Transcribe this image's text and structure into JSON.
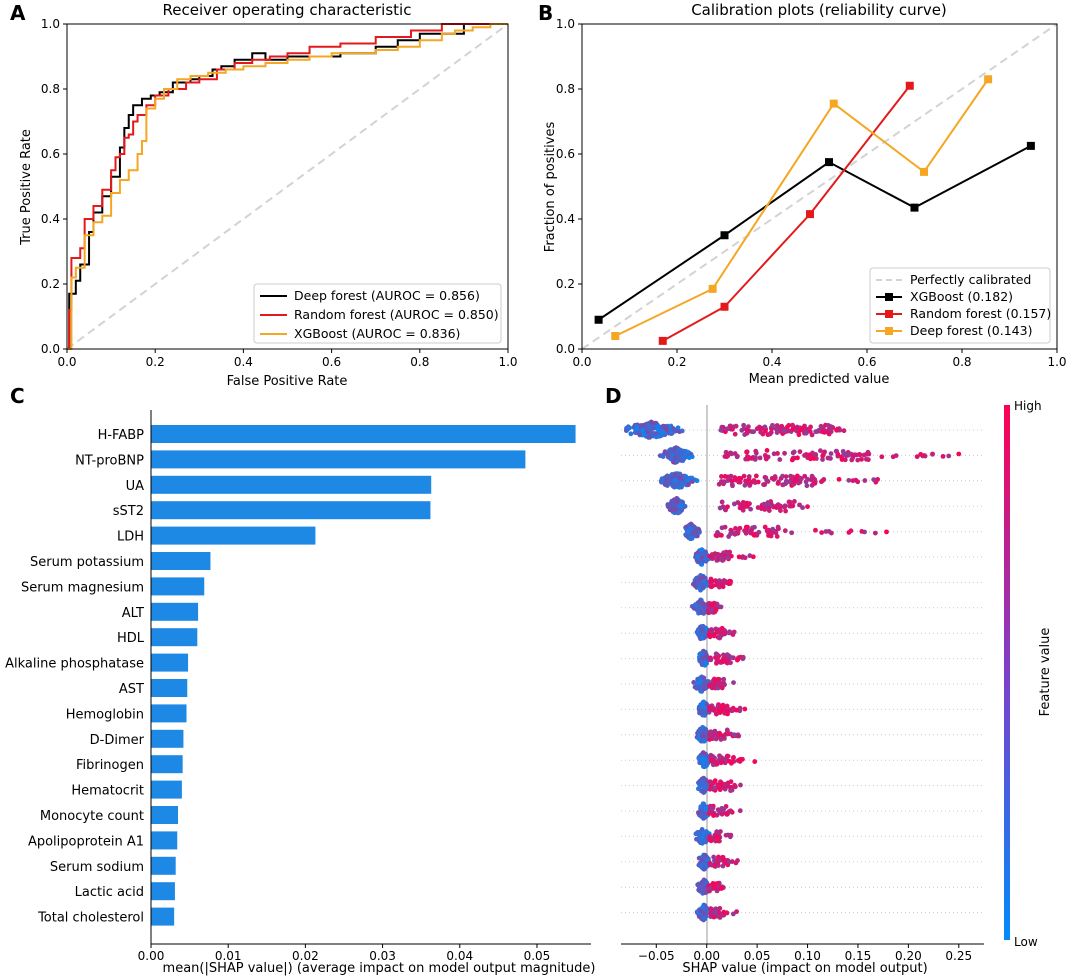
{
  "panels": {
    "A": "A",
    "B": "B",
    "C": "C",
    "D": "D"
  },
  "chart_data": [
    {
      "id": "A",
      "type": "line",
      "title": "Receiver operating characteristic",
      "xlabel": "False Positive Rate",
      "ylabel": "True Positive Rate",
      "xlim": [
        0,
        1
      ],
      "ylim": [
        0,
        1
      ],
      "xticks": [
        "0.0",
        "0.2",
        "0.4",
        "0.6",
        "0.8",
        "1.0"
      ],
      "yticks": [
        "0.0",
        "0.2",
        "0.4",
        "0.6",
        "0.8",
        "1.0"
      ],
      "legend_position": "lower-right",
      "reference_line": {
        "x": [
          0,
          1
        ],
        "y": [
          0,
          1
        ],
        "color": "#d3d3d3",
        "style": "dashed"
      },
      "series": [
        {
          "name": "Deep forest (AUROC = 0.856)",
          "color": "#000000",
          "x": [
            0,
            0.005,
            0.02,
            0.03,
            0.05,
            0.06,
            0.08,
            0.1,
            0.12,
            0.13,
            0.14,
            0.15,
            0.17,
            0.19,
            0.21,
            0.24,
            0.28,
            0.3,
            0.33,
            0.35,
            0.38,
            0.42,
            0.45,
            0.5,
            0.55,
            0.62,
            0.7,
            0.75,
            0.8,
            0.9,
            0.92,
            1.0
          ],
          "y": [
            0,
            0.17,
            0.21,
            0.26,
            0.36,
            0.42,
            0.47,
            0.53,
            0.62,
            0.68,
            0.72,
            0.75,
            0.77,
            0.78,
            0.79,
            0.82,
            0.83,
            0.84,
            0.86,
            0.87,
            0.89,
            0.91,
            0.89,
            0.9,
            0.9,
            0.91,
            0.93,
            0.95,
            0.97,
            1.0,
            1.0,
            1.0
          ]
        },
        {
          "name": "Random forest (AUROC = 0.850)",
          "color": "#e31a1c",
          "x": [
            0,
            0.005,
            0.01,
            0.03,
            0.04,
            0.06,
            0.08,
            0.1,
            0.11,
            0.12,
            0.13,
            0.14,
            0.15,
            0.16,
            0.18,
            0.2,
            0.23,
            0.27,
            0.3,
            0.34,
            0.38,
            0.42,
            0.46,
            0.5,
            0.55,
            0.62,
            0.7,
            0.78,
            0.85,
            0.91,
            0.95,
            1.0
          ],
          "y": [
            0,
            0.12,
            0.28,
            0.31,
            0.4,
            0.44,
            0.49,
            0.55,
            0.59,
            0.6,
            0.65,
            0.66,
            0.7,
            0.72,
            0.75,
            0.78,
            0.8,
            0.82,
            0.83,
            0.86,
            0.88,
            0.89,
            0.9,
            0.91,
            0.93,
            0.94,
            0.96,
            0.98,
            1.0,
            1.0,
            1.0,
            1.0
          ]
        },
        {
          "name": "XGBoost (AUROC = 0.836)",
          "color": "#f5a623",
          "x": [
            0,
            0.01,
            0.02,
            0.04,
            0.06,
            0.08,
            0.1,
            0.12,
            0.14,
            0.16,
            0.17,
            0.18,
            0.2,
            0.22,
            0.25,
            0.28,
            0.32,
            0.36,
            0.4,
            0.45,
            0.5,
            0.55,
            0.6,
            0.65,
            0.7,
            0.75,
            0.8,
            0.85,
            0.88,
            0.92,
            0.96,
            1.0
          ],
          "y": [
            0,
            0.22,
            0.25,
            0.35,
            0.39,
            0.41,
            0.48,
            0.52,
            0.55,
            0.6,
            0.64,
            0.74,
            0.77,
            0.8,
            0.83,
            0.84,
            0.85,
            0.86,
            0.87,
            0.88,
            0.89,
            0.9,
            0.91,
            0.91,
            0.92,
            0.93,
            0.95,
            0.97,
            0.98,
            0.99,
            1.0,
            1.0
          ]
        }
      ]
    },
    {
      "id": "B",
      "type": "line",
      "title": "Calibration plots  (reliability curve)",
      "xlabel": "Mean predicted value",
      "ylabel": "Fraction of positives",
      "xlim": [
        0,
        1
      ],
      "ylim": [
        0,
        1
      ],
      "xticks": [
        "0.0",
        "0.2",
        "0.4",
        "0.6",
        "0.8",
        "1.0"
      ],
      "yticks": [
        "0.0",
        "0.2",
        "0.4",
        "0.6",
        "0.8",
        "1.0"
      ],
      "legend_position": "lower-right",
      "reference_line": {
        "name": "Perfectly calibrated",
        "x": [
          0,
          1
        ],
        "y": [
          0,
          1
        ],
        "color": "#d3d3d3",
        "style": "dashed"
      },
      "series": [
        {
          "name": "XGBoost (0.182)",
          "color": "#000000",
          "x": [
            0.035,
            0.3,
            0.52,
            0.7,
            0.945
          ],
          "y": [
            0.09,
            0.35,
            0.575,
            0.435,
            0.625
          ]
        },
        {
          "name": "Random forest (0.157)",
          "color": "#e31a1c",
          "x": [
            0.17,
            0.3,
            0.48,
            0.69
          ],
          "y": [
            0.025,
            0.13,
            0.415,
            0.81
          ]
        },
        {
          "name": "Deep forest (0.143)",
          "color": "#f5a623",
          "x": [
            0.07,
            0.275,
            0.53,
            0.72,
            0.855
          ],
          "y": [
            0.04,
            0.185,
            0.755,
            0.545,
            0.83
          ]
        }
      ]
    },
    {
      "id": "C",
      "type": "bar",
      "orientation": "horizontal",
      "xlabel": "mean(|SHAP value|) (average impact on model output magnitude)",
      "xlim": [
        0,
        0.057
      ],
      "xticks": [
        "0.00",
        "0.01",
        "0.02",
        "0.03",
        "0.04",
        "0.05"
      ],
      "bar_color": "#1e88e5",
      "categories": [
        "H-FABP",
        "NT-proBNP",
        "UA",
        "sST2",
        "LDH",
        "Serum potassium",
        "Serum magnesium",
        "ALT",
        "HDL",
        "Alkaline phosphatase",
        "AST",
        "Hemoglobin",
        "D-Dimer",
        "Fibrinogen",
        "Hematocrit",
        "Monocyte count",
        "Apolipoprotein A1",
        "Serum sodium",
        "Lactic acid",
        "Total cholesterol"
      ],
      "values": [
        0.055,
        0.0485,
        0.0363,
        0.0362,
        0.0213,
        0.0077,
        0.0069,
        0.0061,
        0.006,
        0.0048,
        0.0047,
        0.0046,
        0.0042,
        0.0041,
        0.004,
        0.0035,
        0.0034,
        0.0032,
        0.0031,
        0.003
      ]
    },
    {
      "id": "D",
      "type": "scatter",
      "subtype": "beeswarm",
      "xlabel": "SHAP value (impact on model output)",
      "xlim": [
        -0.085,
        0.275
      ],
      "xticks": [
        "−0.05",
        "0.00",
        "0.05",
        "0.10",
        "0.15",
        "0.20",
        "0.25"
      ],
      "xtick_values": [
        -0.05,
        0,
        0.05,
        0.1,
        0.15,
        0.2,
        0.25
      ],
      "colorbar": {
        "label": "Feature value",
        "high": "High",
        "low": "Low",
        "low_color": "#008bfb",
        "high_color": "#ff0052"
      },
      "features": [
        {
          "name": "H-FABP",
          "neg_min": -0.08,
          "neg_center": -0.055,
          "neg_spread": 0.022,
          "neg_count": 150,
          "pos_max": 0.14,
          "pos_center": 0.07,
          "pos_count": 120
        },
        {
          "name": "NT-proBNP",
          "neg_min": -0.05,
          "neg_center": -0.03,
          "neg_spread": 0.012,
          "neg_count": 110,
          "pos_max": 0.255,
          "pos_center": 0.09,
          "pos_count": 110
        },
        {
          "name": "UA",
          "neg_min": -0.055,
          "neg_center": -0.03,
          "neg_spread": 0.014,
          "neg_count": 110,
          "pos_max": 0.175,
          "pos_center": 0.06,
          "pos_count": 100
        },
        {
          "name": "sST2",
          "neg_min": -0.04,
          "neg_center": -0.03,
          "neg_spread": 0.007,
          "neg_count": 70,
          "pos_max": 0.1,
          "pos_center": 0.05,
          "pos_count": 60
        },
        {
          "name": "LDH",
          "neg_min": -0.03,
          "neg_center": -0.015,
          "neg_spread": 0.007,
          "neg_count": 80,
          "pos_max": 0.18,
          "pos_center": 0.04,
          "pos_count": 70
        },
        {
          "name": "Serum potassium",
          "neg_min": -0.015,
          "neg_center": -0.005,
          "neg_spread": 0.006,
          "neg_count": 60,
          "pos_max": 0.05,
          "pos_center": 0.015,
          "pos_count": 40
        },
        {
          "name": "Serum magnesium",
          "neg_min": -0.018,
          "neg_center": -0.006,
          "neg_spread": 0.006,
          "neg_count": 60,
          "pos_max": 0.025,
          "pos_center": 0.01,
          "pos_count": 35
        },
        {
          "name": "ALT",
          "neg_min": -0.018,
          "neg_center": -0.006,
          "neg_spread": 0.006,
          "neg_count": 60,
          "pos_max": 0.015,
          "pos_center": 0.006,
          "pos_count": 30
        },
        {
          "name": "HDL",
          "neg_min": -0.016,
          "neg_center": -0.004,
          "neg_spread": 0.006,
          "neg_count": 60,
          "pos_max": 0.03,
          "pos_center": 0.01,
          "pos_count": 35
        },
        {
          "name": "Alkaline phosphatase",
          "neg_min": -0.01,
          "neg_center": -0.003,
          "neg_spread": 0.005,
          "neg_count": 55,
          "pos_max": 0.038,
          "pos_center": 0.015,
          "pos_count": 40
        },
        {
          "name": "AST",
          "neg_min": -0.018,
          "neg_center": -0.005,
          "neg_spread": 0.006,
          "neg_count": 60,
          "pos_max": 0.03,
          "pos_center": 0.01,
          "pos_count": 35
        },
        {
          "name": "Hemoglobin",
          "neg_min": -0.01,
          "neg_center": -0.003,
          "neg_spread": 0.005,
          "neg_count": 55,
          "pos_max": 0.038,
          "pos_center": 0.012,
          "pos_count": 40
        },
        {
          "name": "D-Dimer",
          "neg_min": -0.012,
          "neg_center": -0.004,
          "neg_spread": 0.005,
          "neg_count": 55,
          "pos_max": 0.035,
          "pos_center": 0.012,
          "pos_count": 35
        },
        {
          "name": "Fibrinogen",
          "neg_min": -0.01,
          "neg_center": -0.003,
          "neg_spread": 0.005,
          "neg_count": 55,
          "pos_max": 0.055,
          "pos_center": 0.015,
          "pos_count": 40
        },
        {
          "name": "Hematocrit",
          "neg_min": -0.01,
          "neg_center": -0.003,
          "neg_spread": 0.005,
          "neg_count": 55,
          "pos_max": 0.04,
          "pos_center": 0.014,
          "pos_count": 40
        },
        {
          "name": "Monocyte count",
          "neg_min": -0.012,
          "neg_center": -0.003,
          "neg_spread": 0.005,
          "neg_count": 55,
          "pos_max": 0.035,
          "pos_center": 0.012,
          "pos_count": 35
        },
        {
          "name": "Apolipoprotein A1",
          "neg_min": -0.016,
          "neg_center": -0.004,
          "neg_spread": 0.006,
          "neg_count": 55,
          "pos_max": 0.024,
          "pos_center": 0.008,
          "pos_count": 30
        },
        {
          "name": "Serum sodium",
          "neg_min": -0.012,
          "neg_center": -0.003,
          "neg_spread": 0.005,
          "neg_count": 55,
          "pos_max": 0.035,
          "pos_center": 0.012,
          "pos_count": 35
        },
        {
          "name": "Lactic acid",
          "neg_min": -0.01,
          "neg_center": -0.003,
          "neg_spread": 0.005,
          "neg_count": 55,
          "pos_max": 0.018,
          "pos_center": 0.008,
          "pos_count": 30
        },
        {
          "name": "Total cholesterol",
          "neg_min": -0.01,
          "neg_center": -0.003,
          "neg_spread": 0.005,
          "neg_count": 55,
          "pos_max": 0.03,
          "pos_center": 0.01,
          "pos_count": 30
        }
      ]
    }
  ]
}
